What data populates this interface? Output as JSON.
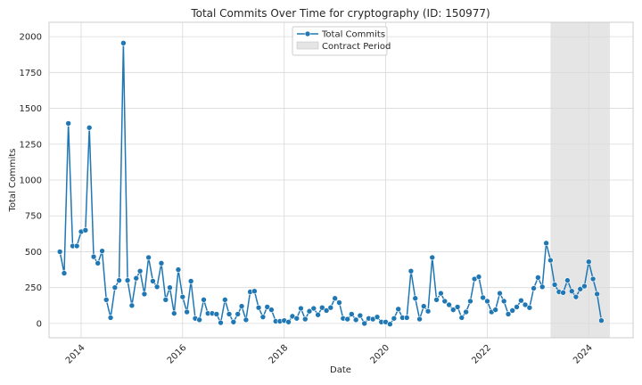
{
  "chart_data": {
    "type": "line",
    "title": "Total Commits Over Time for cryptography (ID: 150977)",
    "xlabel": "Date",
    "ylabel": "Total Commits",
    "x_axis_type": "date",
    "xlim": [
      "2013-05-15",
      "2024-11-15"
    ],
    "ylim": [
      -100,
      2100
    ],
    "y_ticks": [
      0,
      250,
      500,
      750,
      1000,
      1250,
      1500,
      1750,
      2000
    ],
    "x_ticks": [
      {
        "date": "2014-01-01",
        "label": "2014"
      },
      {
        "date": "2016-01-01",
        "label": "2016"
      },
      {
        "date": "2018-01-01",
        "label": "2018"
      },
      {
        "date": "2020-01-01",
        "label": "2020"
      },
      {
        "date": "2022-01-01",
        "label": "2022"
      },
      {
        "date": "2024-01-01",
        "label": "2024"
      }
    ],
    "grid": true,
    "legend_position": "top-center",
    "line_color": "#1f77b4",
    "shade_color": "#d3d3d3",
    "series": [
      {
        "name": "Total Commits",
        "points": [
          [
            "2013-08-01",
            500
          ],
          [
            "2013-09-01",
            350
          ],
          [
            "2013-10-01",
            1395
          ],
          [
            "2013-11-01",
            540
          ],
          [
            "2013-12-01",
            540
          ],
          [
            "2014-01-01",
            640
          ],
          [
            "2014-02-01",
            650
          ],
          [
            "2014-03-01",
            1365
          ],
          [
            "2014-04-01",
            465
          ],
          [
            "2014-05-01",
            420
          ],
          [
            "2014-06-01",
            505
          ],
          [
            "2014-07-01",
            165
          ],
          [
            "2014-08-01",
            40
          ],
          [
            "2014-09-01",
            250
          ],
          [
            "2014-10-01",
            300
          ],
          [
            "2014-11-01",
            1955
          ],
          [
            "2014-12-01",
            300
          ],
          [
            "2015-01-01",
            125
          ],
          [
            "2015-02-01",
            315
          ],
          [
            "2015-03-01",
            365
          ],
          [
            "2015-04-01",
            205
          ],
          [
            "2015-05-01",
            460
          ],
          [
            "2015-06-01",
            295
          ],
          [
            "2015-07-01",
            255
          ],
          [
            "2015-08-01",
            420
          ],
          [
            "2015-09-01",
            165
          ],
          [
            "2015-10-01",
            250
          ],
          [
            "2015-11-01",
            70
          ],
          [
            "2015-12-01",
            375
          ],
          [
            "2016-01-01",
            185
          ],
          [
            "2016-02-01",
            80
          ],
          [
            "2016-03-01",
            295
          ],
          [
            "2016-04-01",
            35
          ],
          [
            "2016-05-01",
            25
          ],
          [
            "2016-06-01",
            165
          ],
          [
            "2016-07-01",
            70
          ],
          [
            "2016-08-01",
            70
          ],
          [
            "2016-09-01",
            65
          ],
          [
            "2016-10-01",
            5
          ],
          [
            "2016-11-01",
            165
          ],
          [
            "2016-12-01",
            65
          ],
          [
            "2017-01-01",
            10
          ],
          [
            "2017-02-01",
            65
          ],
          [
            "2017-03-01",
            120
          ],
          [
            "2017-04-01",
            25
          ],
          [
            "2017-05-01",
            220
          ],
          [
            "2017-06-01",
            225
          ],
          [
            "2017-07-01",
            110
          ],
          [
            "2017-08-01",
            45
          ],
          [
            "2017-09-01",
            115
          ],
          [
            "2017-10-01",
            95
          ],
          [
            "2017-11-01",
            15
          ],
          [
            "2017-12-01",
            15
          ],
          [
            "2018-01-01",
            20
          ],
          [
            "2018-02-01",
            10
          ],
          [
            "2018-03-01",
            50
          ],
          [
            "2018-04-01",
            35
          ],
          [
            "2018-05-01",
            105
          ],
          [
            "2018-06-01",
            30
          ],
          [
            "2018-07-01",
            85
          ],
          [
            "2018-08-01",
            105
          ],
          [
            "2018-09-01",
            60
          ],
          [
            "2018-10-01",
            110
          ],
          [
            "2018-11-01",
            90
          ],
          [
            "2018-12-01",
            110
          ],
          [
            "2019-01-01",
            175
          ],
          [
            "2019-02-01",
            145
          ],
          [
            "2019-03-01",
            35
          ],
          [
            "2019-04-01",
            30
          ],
          [
            "2019-05-01",
            65
          ],
          [
            "2019-06-01",
            25
          ],
          [
            "2019-07-01",
            55
          ],
          [
            "2019-08-01",
            0
          ],
          [
            "2019-09-01",
            35
          ],
          [
            "2019-10-01",
            30
          ],
          [
            "2019-11-01",
            45
          ],
          [
            "2019-12-01",
            10
          ],
          [
            "2020-01-01",
            10
          ],
          [
            "2020-02-01",
            -5
          ],
          [
            "2020-03-01",
            35
          ],
          [
            "2020-04-01",
            100
          ],
          [
            "2020-05-01",
            40
          ],
          [
            "2020-06-01",
            40
          ],
          [
            "2020-07-01",
            365
          ],
          [
            "2020-08-01",
            175
          ],
          [
            "2020-09-01",
            30
          ],
          [
            "2020-10-01",
            120
          ],
          [
            "2020-11-01",
            85
          ],
          [
            "2020-12-01",
            460
          ],
          [
            "2021-01-01",
            165
          ],
          [
            "2021-02-01",
            210
          ],
          [
            "2021-03-01",
            155
          ],
          [
            "2021-04-01",
            130
          ],
          [
            "2021-05-01",
            95
          ],
          [
            "2021-06-01",
            115
          ],
          [
            "2021-07-01",
            40
          ],
          [
            "2021-08-01",
            80
          ],
          [
            "2021-09-01",
            155
          ],
          [
            "2021-10-01",
            310
          ],
          [
            "2021-11-01",
            325
          ],
          [
            "2021-12-01",
            180
          ],
          [
            "2022-01-01",
            155
          ],
          [
            "2022-02-01",
            80
          ],
          [
            "2022-03-01",
            95
          ],
          [
            "2022-04-01",
            210
          ],
          [
            "2022-05-01",
            155
          ],
          [
            "2022-06-01",
            65
          ],
          [
            "2022-07-01",
            90
          ],
          [
            "2022-08-01",
            115
          ],
          [
            "2022-09-01",
            160
          ],
          [
            "2022-10-01",
            130
          ],
          [
            "2022-11-01",
            110
          ],
          [
            "2022-12-01",
            245
          ],
          [
            "2023-01-01",
            320
          ],
          [
            "2023-02-01",
            255
          ],
          [
            "2023-03-01",
            560
          ],
          [
            "2023-04-01",
            440
          ],
          [
            "2023-05-01",
            270
          ],
          [
            "2023-06-01",
            220
          ],
          [
            "2023-07-01",
            215
          ],
          [
            "2023-08-01",
            300
          ],
          [
            "2023-09-01",
            225
          ],
          [
            "2023-10-01",
            185
          ],
          [
            "2023-11-01",
            240
          ],
          [
            "2023-12-01",
            260
          ],
          [
            "2024-01-01",
            430
          ],
          [
            "2024-02-01",
            310
          ],
          [
            "2024-03-01",
            205
          ],
          [
            "2024-04-01",
            20
          ]
        ]
      }
    ],
    "shaded_regions": [
      {
        "name": "Contract Period",
        "start": "2023-04-01",
        "end": "2024-06-01"
      }
    ],
    "legend": [
      {
        "label": "Total Commits",
        "kind": "line-marker"
      },
      {
        "label": "Contract Period",
        "kind": "patch"
      }
    ]
  }
}
